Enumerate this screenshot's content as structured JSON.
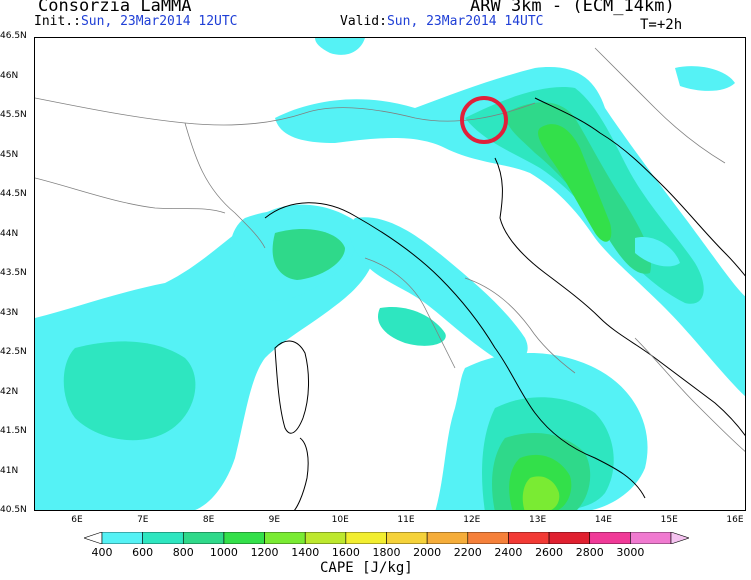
{
  "header": {
    "producer": "Consorzia LaMMA",
    "model": "ARW 3km - (ECM_14km)",
    "init_label": "Init.:",
    "init_value": "Sun, 23Mar2014 12UTC",
    "valid_label": "Valid:",
    "valid_value": "Sun, 23Mar2014 14UTC",
    "step": "T=+2h"
  },
  "map": {
    "lat_labels": [
      "46.5N",
      "46N",
      "45.5N",
      "45N",
      "44.5N",
      "44N",
      "43.5N",
      "43N",
      "42.5N",
      "42N",
      "41.5N",
      "41N",
      "40.5N"
    ],
    "lon_labels": [
      "6E",
      "7E",
      "8E",
      "9E",
      "10E",
      "11E",
      "12E",
      "13E",
      "14E",
      "15E",
      "16E"
    ],
    "highlight_marker": "red-circle"
  },
  "colorbar": {
    "title": "CAPE [J/kg]",
    "labels": [
      "400",
      "600",
      "800",
      "1000",
      "1200",
      "1400",
      "1600",
      "1800",
      "2000",
      "2200",
      "2400",
      "2600",
      "2800",
      "3000"
    ],
    "colors": [
      "#ffffff",
      "#55f2f5",
      "#2ee6c0",
      "#2fd98a",
      "#33e04a",
      "#7aeb33",
      "#bde82e",
      "#f2ee30",
      "#f5d23a",
      "#f5ad3a",
      "#f5803a",
      "#f23a35",
      "#e02030",
      "#f03a98",
      "#f07ad0",
      "#f5c3f0"
    ]
  }
}
